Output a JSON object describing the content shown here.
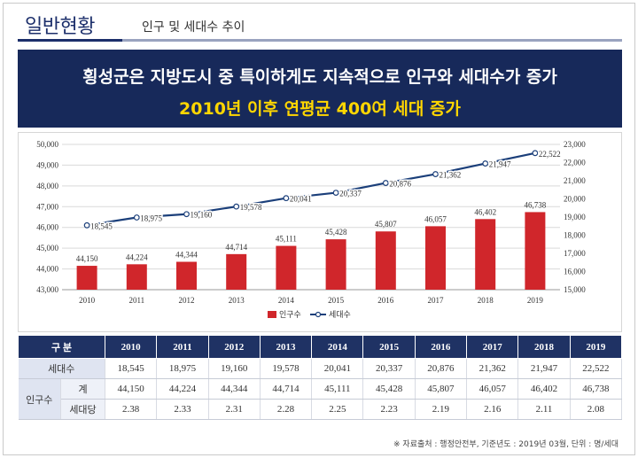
{
  "header": {
    "section": "일반현황",
    "subtitle": "인구 및 세대수 추이"
  },
  "banner": {
    "line1": "횡성군은 지방도시 중 특이하게도 지속적으로 인구와 세대수가 증가",
    "line2": "2010년 이후 연평균 400여 세대 증가"
  },
  "colors": {
    "bar": "#d0262b",
    "line": "#1b3f7a",
    "banner_bg": "#17295a",
    "highlight": "#ffd600",
    "table_header": "#1f3264"
  },
  "chart_data": {
    "type": "bar+line",
    "categories": [
      "2010",
      "2011",
      "2012",
      "2013",
      "2014",
      "2015",
      "2016",
      "2017",
      "2018",
      "2019"
    ],
    "series": [
      {
        "name": "인구수",
        "type": "bar",
        "axis": "left",
        "values": [
          44150,
          44224,
          44344,
          44714,
          45111,
          45428,
          45807,
          46057,
          46402,
          46738
        ],
        "labels": [
          "44,150",
          "44,224",
          "44,344",
          "44,714",
          "45,111",
          "45,428",
          "45,807",
          "46,057",
          "46,402",
          "46,738"
        ]
      },
      {
        "name": "세대수",
        "type": "line",
        "axis": "right",
        "values": [
          18545,
          18975,
          19160,
          19578,
          20041,
          20337,
          20876,
          21362,
          21947,
          22522
        ],
        "labels": [
          "18,545",
          "18,975",
          "19,160",
          "19,578",
          "20,041",
          "20,337",
          "20,876",
          "21,362",
          "21,947",
          "22,522"
        ]
      }
    ],
    "y_left": {
      "range": [
        43000,
        50000
      ],
      "ticks": [
        "43,000",
        "44,000",
        "45,000",
        "46,000",
        "47,000",
        "48,000",
        "49,000",
        "50,000"
      ]
    },
    "y_right": {
      "range": [
        15000,
        23000
      ],
      "ticks": [
        "15,000",
        "16,000",
        "17,000",
        "18,000",
        "19,000",
        "20,000",
        "21,000",
        "22,000",
        "23,000"
      ]
    },
    "grid": true,
    "legend": "bottom"
  },
  "table": {
    "header": [
      "구 분",
      "2010",
      "2011",
      "2012",
      "2013",
      "2014",
      "2015",
      "2016",
      "2017",
      "2018",
      "2019"
    ],
    "households": {
      "label": "세대수",
      "values": [
        "18,545",
        "18,975",
        "19,160",
        "19,578",
        "20,041",
        "20,337",
        "20,876",
        "21,362",
        "21,947",
        "22,522"
      ]
    },
    "population": {
      "label": "인구수",
      "total": {
        "label": "계",
        "values": [
          "44,150",
          "44,224",
          "44,344",
          "44,714",
          "45,111",
          "45,428",
          "45,807",
          "46,057",
          "46,402",
          "46,738"
        ]
      },
      "per_household": {
        "label": "세대당",
        "values": [
          "2.38",
          "2.33",
          "2.31",
          "2.28",
          "2.25",
          "2.23",
          "2.19",
          "2.16",
          "2.11",
          "2.08"
        ]
      }
    }
  },
  "source": "※ 자료출처 : 행정안전부, 기준년도 : 2019년 03월, 단위 : 명/세대"
}
